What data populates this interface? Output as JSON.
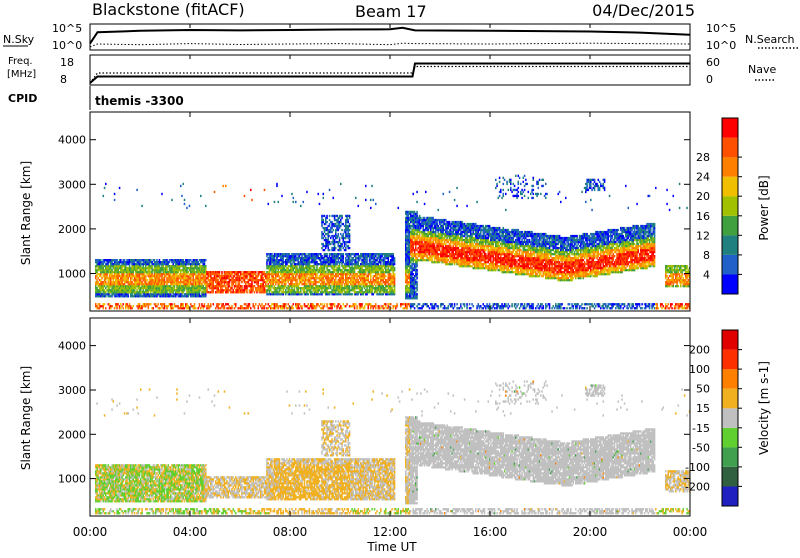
{
  "header": {
    "station": "Blackstone (fitACF)",
    "beam": "Beam 17",
    "date": "04/Dec/2015"
  },
  "cpid": {
    "label": "CPID",
    "text": "themis  -3300"
  },
  "chart_data": [
    {
      "type": "line",
      "panel": "nsky",
      "ylabel": "N.Sky",
      "ytick_labels": [
        "10^5",
        "10^0"
      ],
      "right_label": "N.Search",
      "right_tick_labels": [
        "10^5",
        "10^0"
      ],
      "x_hours": [
        0,
        0.3,
        2,
        4,
        6,
        8,
        10,
        12,
        12.5,
        13,
        16,
        20,
        22,
        24
      ],
      "nsky_fraction": [
        0.2,
        0.72,
        0.78,
        0.82,
        0.8,
        0.82,
        0.84,
        0.85,
        0.92,
        0.8,
        0.78,
        0.75,
        0.7,
        0.6
      ],
      "nsearch_fraction": [
        0.05,
        0.18,
        0.15,
        0.2,
        0.16,
        0.18,
        0.2,
        0.15,
        0.22,
        0.2,
        0.18,
        0.22,
        0.2,
        0.18
      ]
    },
    {
      "type": "line",
      "panel": "freq",
      "ylabel": "Freq.",
      "ylabel_unit": "[MHz]",
      "ytick_labels": [
        "18",
        "8"
      ],
      "ylim": [
        8,
        18
      ],
      "right_label": "Nave",
      "right_tick_labels": [
        "60",
        "0"
      ],
      "right_ylim": [
        0,
        60
      ],
      "x_hours": [
        0,
        0.3,
        12.9,
        13.0,
        24
      ],
      "freq_mhz": [
        8,
        10.5,
        10.5,
        15.5,
        15.5
      ],
      "nave": [
        0,
        23,
        23,
        38,
        38
      ]
    },
    {
      "type": "heatmap",
      "panel": "power",
      "ylabel": "Slant Range [km]",
      "yticks": [
        1000,
        2000,
        3000,
        4000
      ],
      "ylim": [
        180,
        4600
      ],
      "colorbar": {
        "label": "Power [dB]",
        "tick_labels": [
          "4",
          "8",
          "12",
          "16",
          "20",
          "24",
          "28"
        ],
        "colors": [
          "#0000ff",
          "#2060c8",
          "#208080",
          "#40a040",
          "#a0c000",
          "#f0c000",
          "#ff8000",
          "#ff5000",
          "#ff0000"
        ]
      }
    },
    {
      "type": "heatmap",
      "panel": "velocity",
      "ylabel": "Slant Range [km]",
      "yticks": [
        1000,
        2000,
        3000,
        4000
      ],
      "ylim": [
        180,
        4600
      ],
      "colorbar": {
        "label": "Velocity [m s-1]",
        "tick_labels": [
          "200",
          "100",
          "50",
          "15",
          "-15",
          "-50",
          "-100",
          "-200"
        ],
        "colors": [
          "#2020c0",
          "#306040",
          "#40a050",
          "#60d030",
          "#c0c0c0",
          "#f0b020",
          "#ff8000",
          "#ff3000",
          "#e00000"
        ]
      }
    }
  ],
  "xaxis": {
    "tick_labels": [
      "00:00",
      "04:00",
      "08:00",
      "12:00",
      "16:00",
      "20:00",
      "00:00"
    ],
    "tick_hours": [
      0,
      4,
      8,
      12,
      16,
      20,
      24
    ],
    "label": "Time UT"
  }
}
